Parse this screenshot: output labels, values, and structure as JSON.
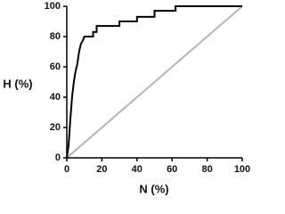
{
  "chart_data": {
    "type": "line",
    "x_label": "N (%)",
    "y_label": "H (%)",
    "xlim": [
      0,
      100
    ],
    "ylim": [
      0,
      100
    ],
    "xticks": [
      0,
      20,
      40,
      60,
      80,
      100
    ],
    "yticks": [
      0,
      20,
      40,
      60,
      80,
      100
    ],
    "series": [
      {
        "color": "#000000",
        "x": [
          0,
          1,
          2,
          3,
          4,
          5,
          6,
          7,
          8,
          9,
          10,
          15,
          15,
          17,
          17,
          30,
          30,
          40,
          40,
          50,
          50,
          62,
          62,
          100
        ],
        "values": [
          0,
          8,
          25,
          40,
          50,
          57,
          62,
          70,
          75,
          77,
          80,
          80,
          83,
          83,
          87,
          87,
          90,
          90,
          93,
          93,
          97,
          97,
          100,
          100
        ]
      },
      {
        "color": "#b4b4b4",
        "x": [
          0,
          100
        ],
        "values": [
          0,
          100
        ]
      }
    ]
  }
}
